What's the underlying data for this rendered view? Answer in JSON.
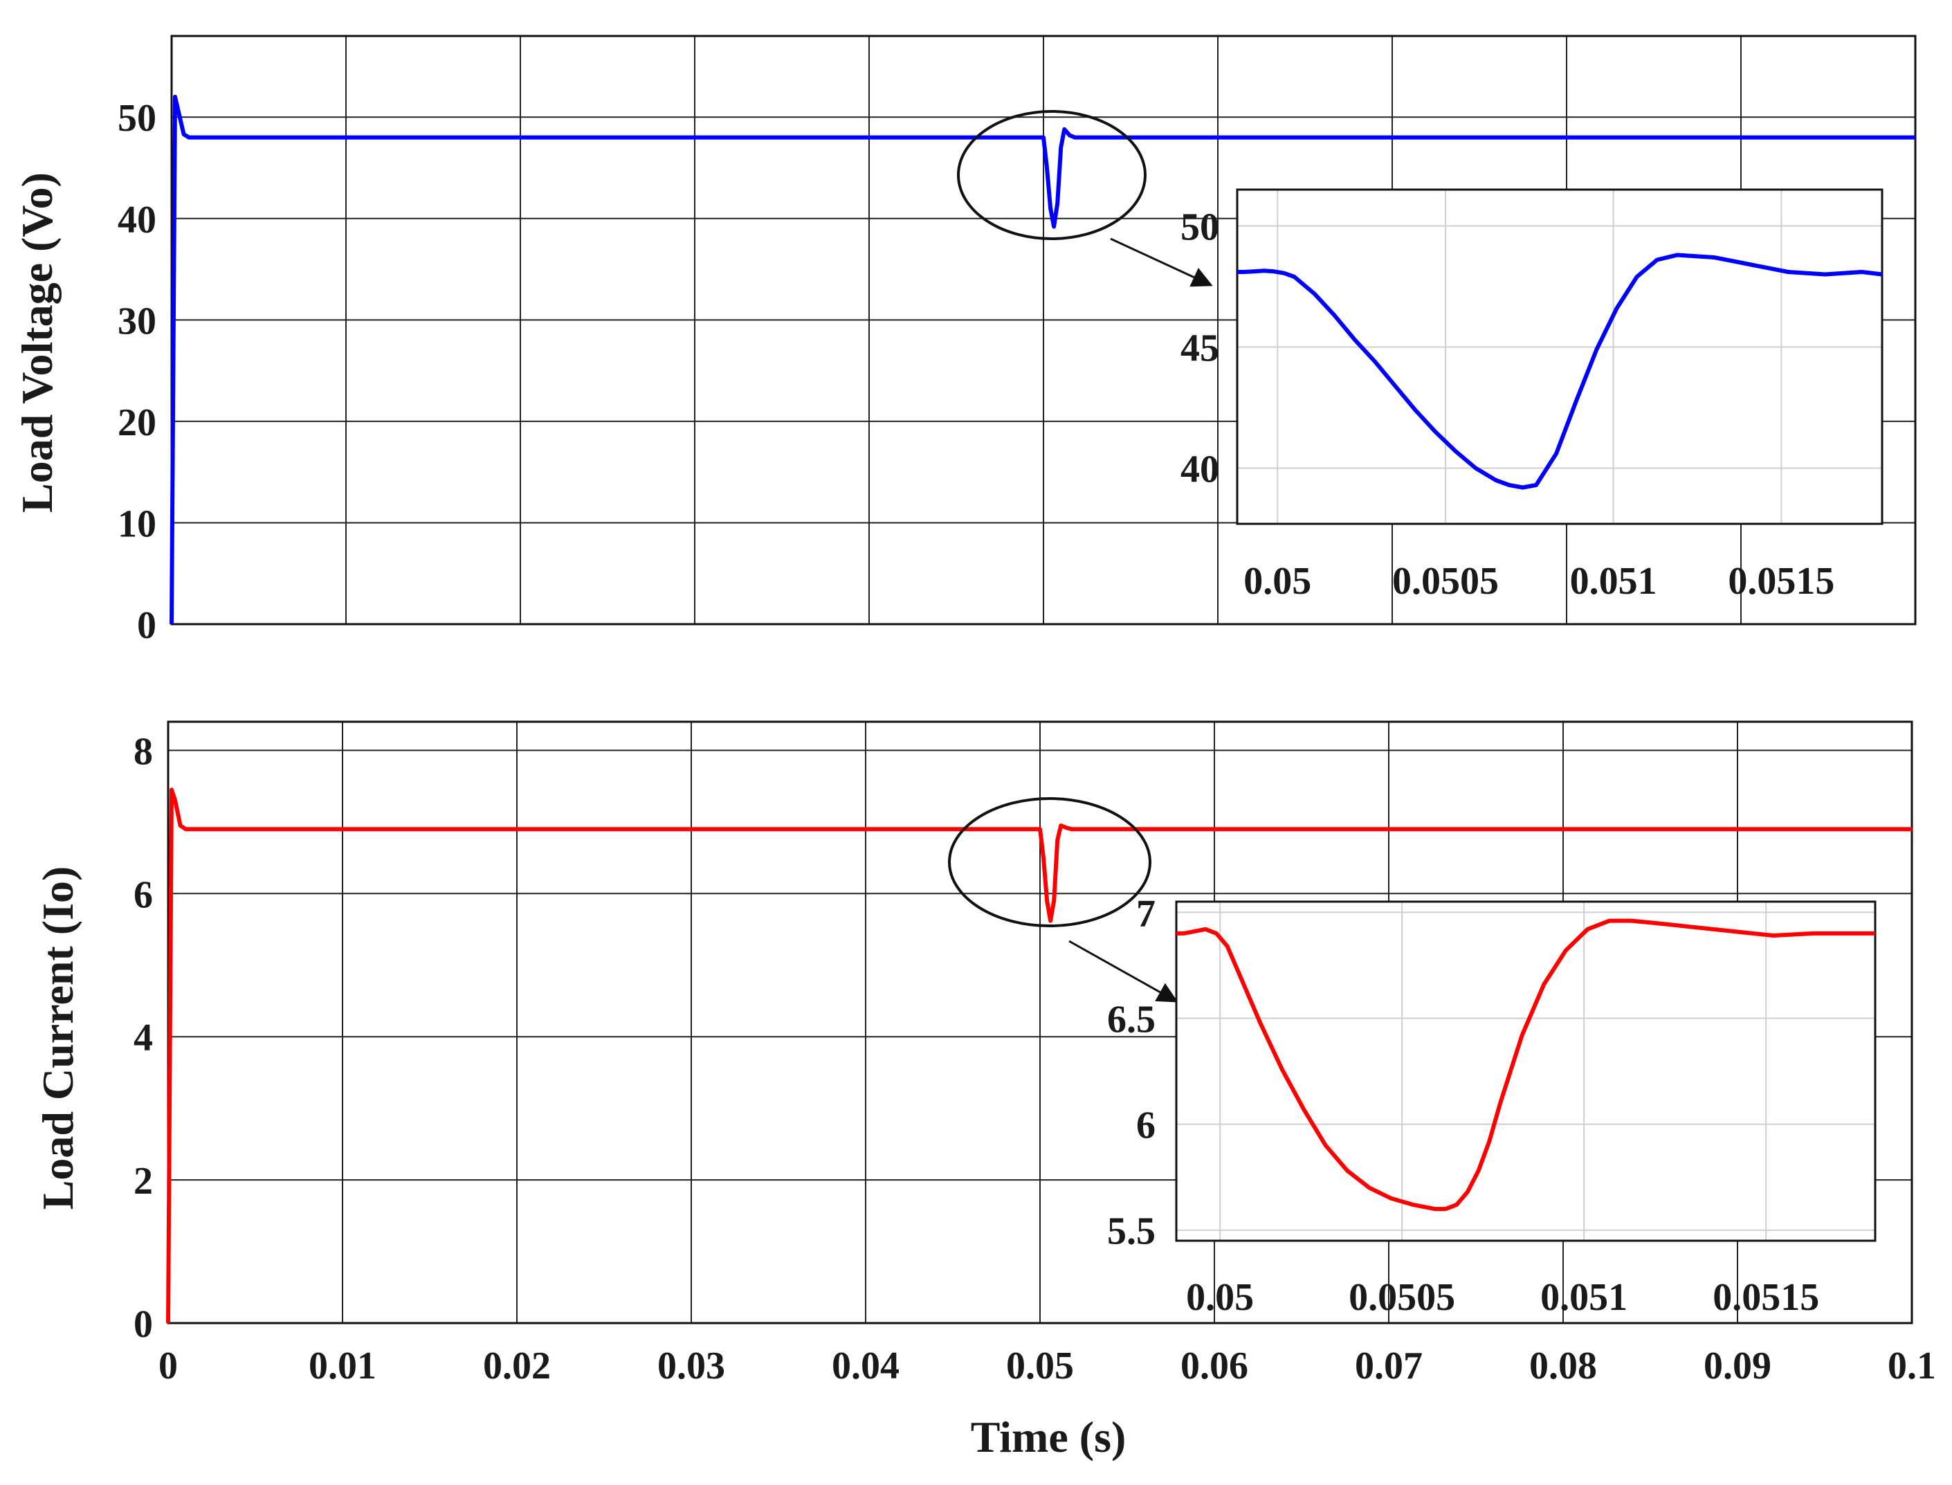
{
  "chart_data": [
    {
      "type": "line",
      "ylabel": "Load Voltage (Vo)",
      "xlim": [
        0,
        0.1
      ],
      "ylim": [
        0,
        58
      ],
      "x_ticks": [
        0,
        0.01,
        0.02,
        0.03,
        0.04,
        0.05,
        0.06,
        0.07,
        0.08,
        0.09,
        0.1
      ],
      "y_ticks": [
        0,
        10,
        20,
        30,
        40,
        50
      ],
      "y_tick_labels": [
        "0",
        "10",
        "20",
        "30",
        "40",
        "50"
      ],
      "grid": true,
      "color": "#0000ff",
      "series": [
        {
          "x": [
            0,
            0.0002,
            0.0004,
            0.0007,
            0.001,
            0.0015,
            0.05,
            0.0502,
            0.0504,
            0.0506,
            0.0508,
            0.051,
            0.0512,
            0.0515,
            0.0518,
            0.1
          ],
          "y": [
            0,
            52,
            50.5,
            48.3,
            48,
            48,
            48,
            45,
            41,
            39.2,
            41.5,
            47,
            48.8,
            48.2,
            48,
            48
          ]
        }
      ],
      "annotations": [
        "ellipse highlighting transient near t = 0.05 s",
        "arrow to zoomed inset"
      ],
      "inset": {
        "xlim": [
          0.04988,
          0.0518
        ],
        "ylim": [
          37.7,
          51.5
        ],
        "x_ticks": [
          0.05,
          0.0505,
          0.051,
          0.0515
        ],
        "x_tick_labels": [
          "0.05",
          "0.0505",
          "0.051",
          "0.0515"
        ],
        "y_ticks": [
          40,
          45,
          50
        ],
        "y_tick_labels": [
          "40",
          "45",
          "50"
        ],
        "grid": true,
        "series": [
          {
            "x": [
              0.04988,
              0.0499,
              0.04993,
              0.04996,
              0.04999,
              0.05002,
              0.05005,
              0.05011,
              0.05017,
              0.05023,
              0.05029,
              0.05035,
              0.05041,
              0.05047,
              0.05053,
              0.05059,
              0.05065,
              0.05069,
              0.05073,
              0.05077,
              0.05083,
              0.05089,
              0.05095,
              0.05101,
              0.05107,
              0.05113,
              0.05119,
              0.0513,
              0.05141,
              0.05152,
              0.05163,
              0.05174,
              0.0518
            ],
            "y": [
              48.1,
              48.1,
              48.12,
              48.15,
              48.12,
              48.05,
              47.9,
              47.2,
              46.3,
              45.3,
              44.4,
              43.4,
              42.4,
              41.5,
              40.7,
              40.0,
              39.5,
              39.3,
              39.2,
              39.3,
              40.6,
              42.8,
              44.9,
              46.6,
              47.9,
              48.6,
              48.8,
              48.7,
              48.4,
              48.1,
              48.0,
              48.1,
              48.0
            ]
          }
        ]
      }
    },
    {
      "type": "line",
      "ylabel": "Load Current (Io)",
      "xlabel": "Time (s)",
      "xlim": [
        0,
        0.1
      ],
      "ylim": [
        0,
        8.4
      ],
      "x_ticks": [
        0,
        0.01,
        0.02,
        0.03,
        0.04,
        0.05,
        0.06,
        0.07,
        0.08,
        0.09,
        0.1
      ],
      "x_tick_labels": [
        "0",
        "0.01",
        "0.02",
        "0.03",
        "0.04",
        "0.05",
        "0.06",
        "0.07",
        "0.08",
        "0.09",
        "0.1"
      ],
      "y_ticks": [
        0,
        2,
        4,
        6,
        8
      ],
      "y_tick_labels": [
        "0",
        "2",
        "4",
        "6",
        "8"
      ],
      "grid": true,
      "color": "#ff0000",
      "series": [
        {
          "x": [
            0,
            0.0002,
            0.0004,
            0.0007,
            0.001,
            0.0015,
            0.05,
            0.0502,
            0.0504,
            0.0506,
            0.0508,
            0.051,
            0.0512,
            0.0515,
            0.0518,
            0.1
          ],
          "y": [
            0,
            7.45,
            7.3,
            6.95,
            6.9,
            6.9,
            6.9,
            6.5,
            5.9,
            5.62,
            5.9,
            6.75,
            6.95,
            6.92,
            6.9,
            6.9
          ]
        }
      ],
      "annotations": [
        "ellipse highlighting transient near t = 0.05 s",
        "arrow to zoomed inset"
      ],
      "inset": {
        "xlim": [
          0.04988,
          0.0518
        ],
        "ylim": [
          5.45,
          7.05
        ],
        "x_ticks": [
          0.05,
          0.0505,
          0.051,
          0.0515
        ],
        "x_tick_labels": [
          "0.05",
          "0.0505",
          "0.051",
          "0.0515"
        ],
        "y_ticks": [
          5.5,
          6,
          6.5,
          7
        ],
        "y_tick_labels": [
          "5.5",
          "6",
          "6.5",
          "7"
        ],
        "grid": true,
        "series": [
          {
            "x": [
              0.04988,
              0.0499,
              0.04993,
              0.04996,
              0.04999,
              0.05002,
              0.05005,
              0.05011,
              0.05017,
              0.05023,
              0.05029,
              0.05035,
              0.05041,
              0.05047,
              0.05053,
              0.05059,
              0.05062,
              0.05065,
              0.05068,
              0.05071,
              0.05074,
              0.05077,
              0.05083,
              0.05089,
              0.05095,
              0.05101,
              0.05107,
              0.05113,
              0.05119,
              0.0513,
              0.05141,
              0.05152,
              0.05163,
              0.05174,
              0.0518
            ],
            "y": [
              6.9,
              6.9,
              6.91,
              6.92,
              6.9,
              6.84,
              6.72,
              6.48,
              6.26,
              6.07,
              5.9,
              5.78,
              5.7,
              5.65,
              5.62,
              5.6,
              5.6,
              5.62,
              5.68,
              5.78,
              5.92,
              6.1,
              6.42,
              6.66,
              6.82,
              6.92,
              6.96,
              6.96,
              6.95,
              6.93,
              6.91,
              6.89,
              6.9,
              6.9,
              6.9
            ]
          }
        ]
      }
    }
  ]
}
